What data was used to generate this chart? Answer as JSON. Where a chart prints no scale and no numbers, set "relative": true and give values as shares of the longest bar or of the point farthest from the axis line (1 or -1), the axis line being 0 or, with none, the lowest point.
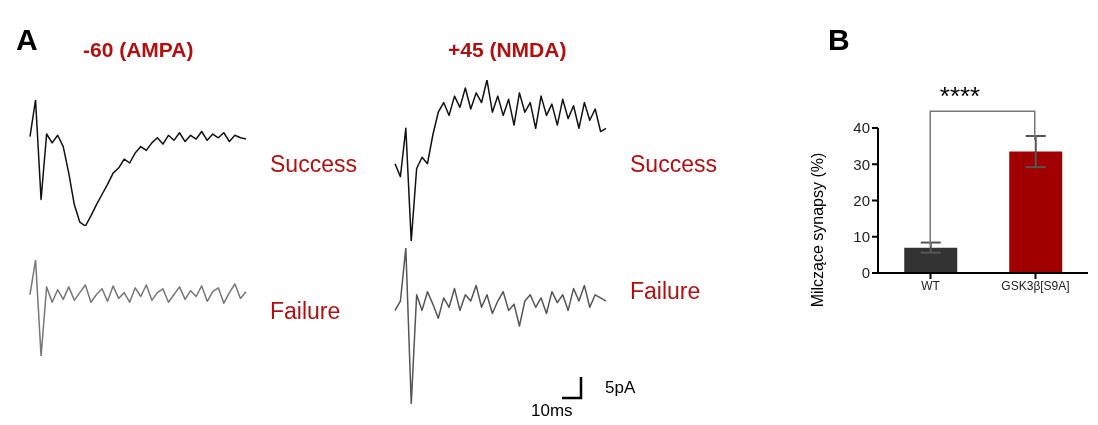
{
  "chart_data": [
    {
      "type": "line",
      "title": "-60 (AMPA)",
      "relative": true,
      "annotations": [
        "A",
        "Success"
      ],
      "categories": [
        null,
        null,
        null,
        null,
        null,
        null,
        null,
        null,
        null,
        null,
        null,
        null,
        null,
        null,
        null,
        null,
        null,
        null,
        null,
        null,
        null,
        null,
        null,
        null,
        null,
        null,
        null,
        null,
        null,
        null,
        null,
        null,
        null,
        null,
        null,
        null,
        null,
        null,
        null,
        null
      ],
      "series": [
        {
          "color": "#111111",
          "values": [
            0.71,
            1,
            0.21,
            0.73,
            0.66,
            0.72,
            0.63,
            0.42,
            0.17,
            0.03,
            0,
            0.08,
            0.17,
            0.25,
            0.33,
            0.42,
            0.46,
            0.53,
            0.5,
            0.58,
            0.63,
            0.6,
            0.66,
            0.7,
            0.65,
            0.72,
            0.68,
            0.74,
            0.67,
            0.72,
            0.69,
            0.75,
            0.68,
            0.73,
            0.7,
            0.74,
            0.67,
            0.72,
            0.7,
            0.69
          ]
        }
      ]
    },
    {
      "type": "line",
      "relative": true,
      "annotations": [
        "Failure"
      ],
      "categories": [
        null,
        null,
        null,
        null,
        null,
        null,
        null,
        null,
        null,
        null,
        null,
        null,
        null,
        null,
        null,
        null,
        null,
        null,
        null,
        null,
        null,
        null,
        null,
        null,
        null,
        null,
        null,
        null,
        null,
        null,
        null,
        null,
        null,
        null,
        null,
        null,
        null,
        null,
        null,
        null
      ],
      "series": [
        {
          "color": "#777777",
          "values": [
            0.64,
            1,
            0,
            0.72,
            0.56,
            0.69,
            0.59,
            0.72,
            0.58,
            0.66,
            0.74,
            0.56,
            0.64,
            0.7,
            0.57,
            0.73,
            0.6,
            0.66,
            0.56,
            0.71,
            0.62,
            0.74,
            0.58,
            0.66,
            0.7,
            0.56,
            0.64,
            0.72,
            0.59,
            0.68,
            0.62,
            0.73,
            0.57,
            0.67,
            0.71,
            0.55,
            0.66,
            0.75,
            0.6,
            0.67
          ]
        }
      ]
    },
    {
      "type": "line",
      "title": "+45 (NMDA)",
      "relative": true,
      "annotations": [
        "Success"
      ],
      "categories": [
        null,
        null,
        null,
        null,
        null,
        null,
        null,
        null,
        null,
        null,
        null,
        null,
        null,
        null,
        null,
        null,
        null,
        null,
        null,
        null,
        null,
        null,
        null,
        null,
        null,
        null,
        null,
        null,
        null,
        null,
        null,
        null,
        null,
        null,
        null,
        null,
        null,
        null,
        null,
        null
      ],
      "series": [
        {
          "color": "#111111",
          "values": [
            0.48,
            0.4,
            0.7,
            0,
            0.45,
            0.52,
            0.48,
            0.66,
            0.8,
            0.86,
            0.78,
            0.9,
            0.83,
            0.95,
            0.82,
            0.92,
            0.86,
            1,
            0.8,
            0.9,
            0.78,
            0.88,
            0.72,
            0.92,
            0.8,
            0.86,
            0.7,
            0.9,
            0.78,
            0.85,
            0.72,
            0.88,
            0.76,
            0.84,
            0.7,
            0.86,
            0.75,
            0.82,
            0.68,
            0.7
          ]
        }
      ]
    },
    {
      "type": "line",
      "relative": true,
      "annotations": [
        "Failure",
        "5pA",
        "10ms"
      ],
      "categories": [
        null,
        null,
        null,
        null,
        null,
        null,
        null,
        null,
        null,
        null,
        null,
        null,
        null,
        null,
        null,
        null,
        null,
        null,
        null,
        null,
        null,
        null,
        null,
        null,
        null,
        null,
        null,
        null,
        null,
        null,
        null,
        null,
        null,
        null,
        null,
        null,
        null,
        null,
        null,
        null
      ],
      "series": [
        {
          "color": "#555555",
          "values": [
            0.6,
            0.66,
            1,
            0,
            0.7,
            0.6,
            0.72,
            0.64,
            0.55,
            0.68,
            0.62,
            0.74,
            0.6,
            0.7,
            0.66,
            0.76,
            0.62,
            0.7,
            0.58,
            0.66,
            0.72,
            0.6,
            0.64,
            0.5,
            0.66,
            0.7,
            0.62,
            0.68,
            0.58,
            0.72,
            0.65,
            0.7,
            0.6,
            0.74,
            0.66,
            0.76,
            0.62,
            0.7,
            0.68,
            0.66
          ]
        }
      ]
    },
    {
      "type": "bar",
      "ylabel": "Milczące synapsy (%)",
      "annotations": [
        "B",
        "****"
      ],
      "categories": [
        "WT",
        "GSK3β[S9A]"
      ],
      "values": [
        7,
        33.5
      ],
      "colors": [
        "#333333",
        "#a00000"
      ],
      "errors": [
        1.4,
        4.3
      ],
      "ylim": [
        0,
        40
      ],
      "yticks": [
        0,
        10,
        20,
        30,
        40
      ]
    }
  ]
}
